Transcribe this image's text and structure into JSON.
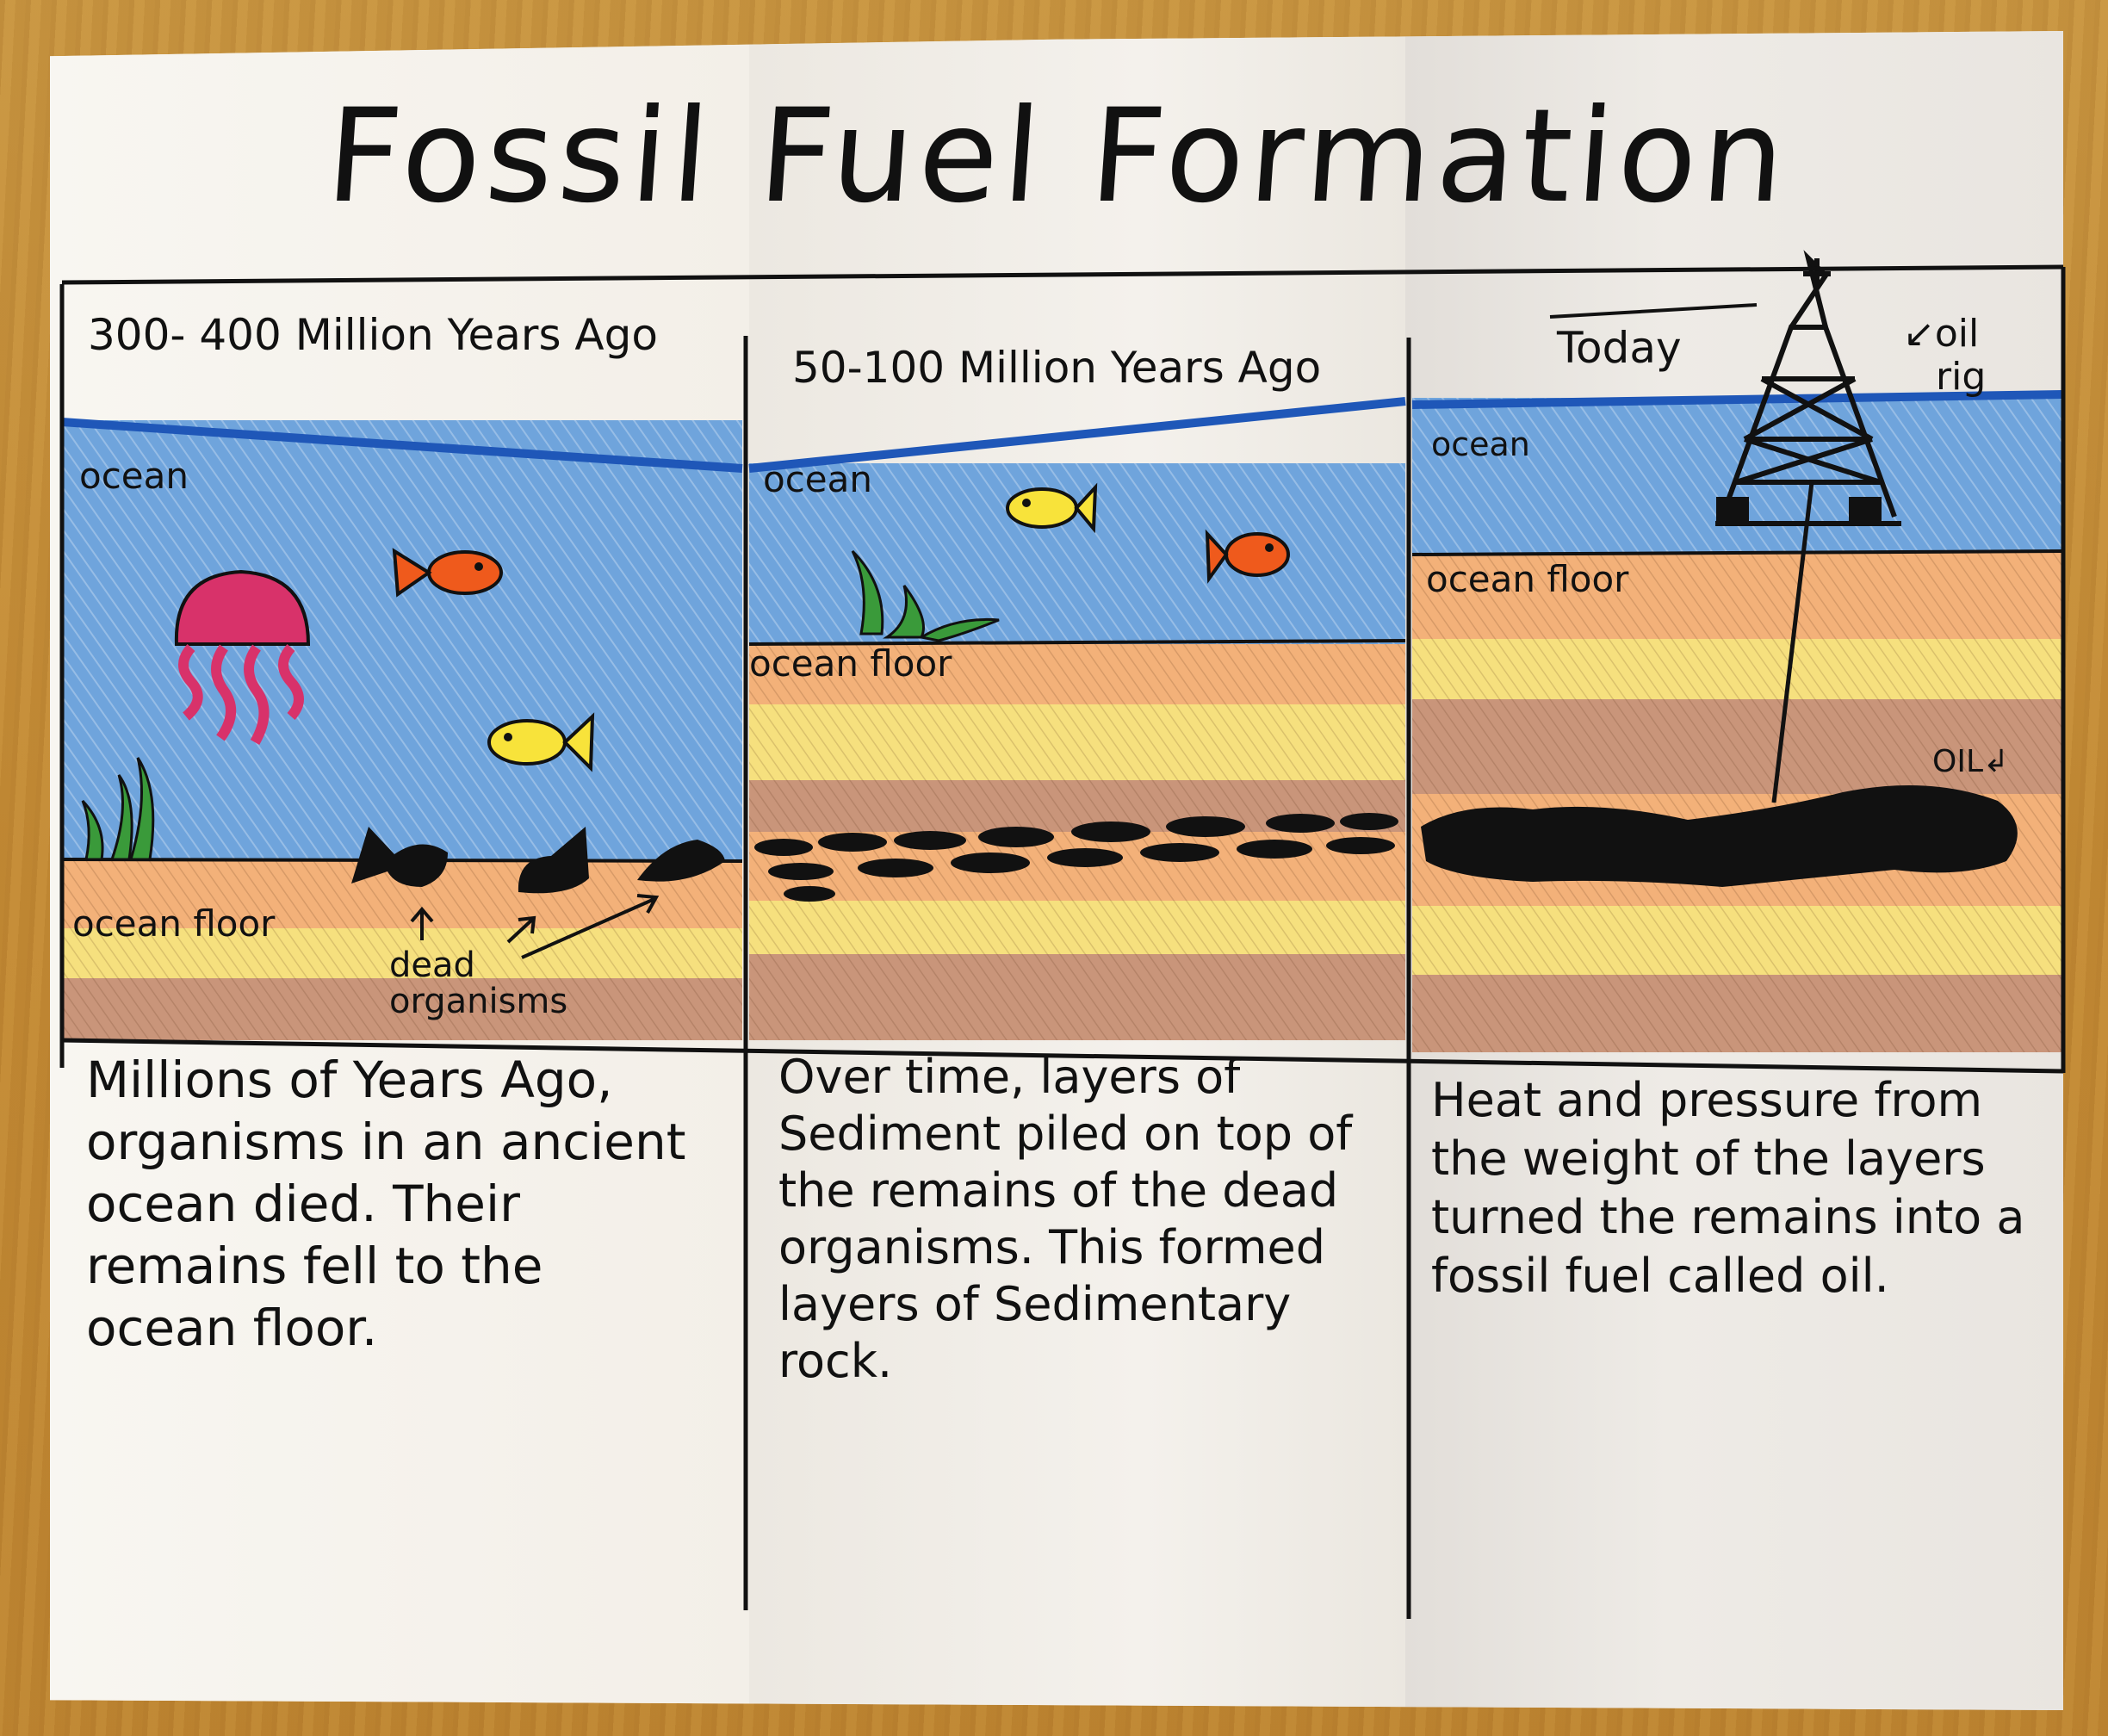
{
  "title": "Fossil Fuel Formation",
  "panels": [
    {
      "heading": "300- 400 Million Years Ago",
      "labels": {
        "ocean": "ocean",
        "ocean_floor": "ocean floor",
        "dead": "dead",
        "organisms": "organisms"
      },
      "description": "Millions of Years Ago, organisms in an ancient ocean died. Their remains fell to the ocean floor."
    },
    {
      "heading": "50-100 Million Years Ago",
      "labels": {
        "ocean": "ocean",
        "ocean_floor": "ocean floor"
      },
      "description": "Over time, layers of Sediment piled on top of the remains of the dead organisms. This formed layers of Sedimentary rock."
    },
    {
      "heading": "Today",
      "labels": {
        "oil_rig_line1": "↙oil",
        "oil_rig_line2": "rig",
        "ocean": "ocean",
        "ocean_floor": "ocean floor",
        "oil": "OIL↲"
      },
      "description": "Heat and pressure from the weight of the layers turned the remains into a fossil fuel called oil."
    }
  ],
  "colors": {
    "water": "#6fa4dc",
    "water_line": "#1f57b8",
    "sand_orange": "#f3b179",
    "sand_yellow": "#f6e07e",
    "sand_brown": "#c9957a",
    "oil": "#111111",
    "jellyfish": "#d8326a",
    "fish_orange": "#ef5a1c",
    "fish_yellow": "#f8e33a",
    "seaweed": "#3a9a3a"
  }
}
